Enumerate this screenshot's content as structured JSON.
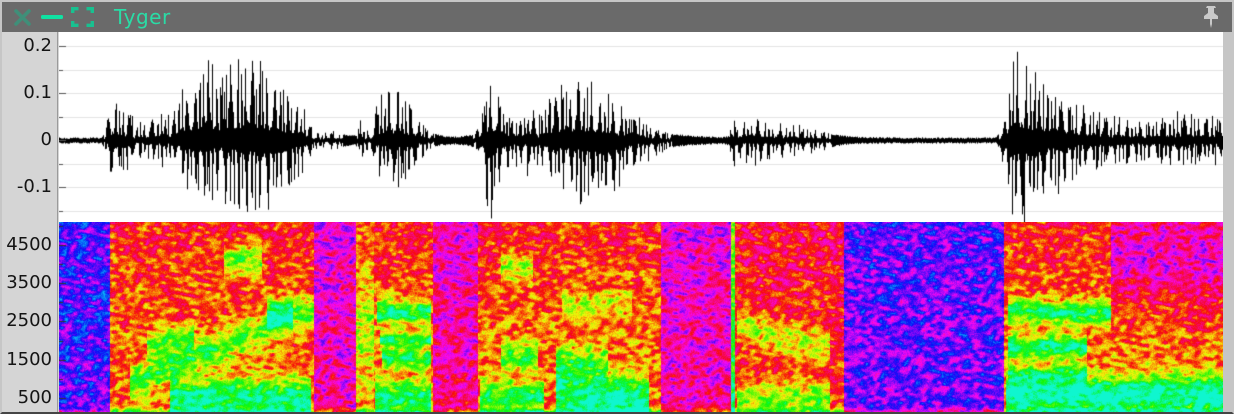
{
  "window": {
    "title": "Tyger"
  },
  "titlebar": {
    "buttons": [
      {
        "name": "close",
        "icon": "close-icon"
      },
      {
        "name": "minimize",
        "icon": "minimize-icon"
      },
      {
        "name": "maximize",
        "icon": "maximize-icon"
      }
    ],
    "pin": {
      "name": "pin",
      "icon": "pin-icon"
    }
  },
  "colors": {
    "titlebar_bg": "#6a6a6a",
    "accent_bright": "#10e2a2",
    "accent_mid": "#18c190",
    "accent_dim": "#3f8f79",
    "title_color": "#2adca6",
    "pin_color": "#c9c9c9",
    "gutter_bg": "#d5d5d5",
    "panel_bg": "#ffffff",
    "grid_color": "#e3e3e3",
    "wave_color": "#000000",
    "tick_color": "#555555",
    "border_light": "#c6c6c6",
    "border_dark": "#454545"
  },
  "chart_data": [
    {
      "type": "line",
      "name": "waveform",
      "title": "amplitude waveform of spoken audio",
      "ylim": [
        -0.1745,
        0.2298
      ],
      "major_ticks": [
        {
          "v": 0.2,
          "label": "0.2"
        },
        {
          "v": 0.1,
          "label": "0.1"
        },
        {
          "v": 0,
          "label": "0"
        },
        {
          "v": -0.1,
          "label": "-0.1"
        }
      ],
      "minor_ticks": [
        0.15,
        0.05,
        -0.05,
        -0.15
      ],
      "grid_values": [
        0.2,
        0.15,
        0.1,
        0.05,
        0,
        -0.05,
        -0.1,
        -0.15
      ],
      "envelope": [
        [
          0.0,
          0.004,
          0.004
        ],
        [
          0.036,
          0.004,
          0.004
        ],
        [
          0.04,
          0.02,
          0.02
        ],
        [
          0.043,
          0.09,
          0.07
        ],
        [
          0.047,
          0.06,
          0.06
        ],
        [
          0.053,
          0.07,
          0.065
        ],
        [
          0.06,
          0.05,
          0.05
        ],
        [
          0.066,
          0.03,
          0.03
        ],
        [
          0.074,
          0.035,
          0.03
        ],
        [
          0.083,
          0.04,
          0.035
        ],
        [
          0.089,
          0.065,
          0.05
        ],
        [
          0.094,
          0.04,
          0.04
        ],
        [
          0.1,
          0.06,
          0.05
        ],
        [
          0.104,
          0.11,
          0.09
        ],
        [
          0.113,
          0.13,
          0.1
        ],
        [
          0.122,
          0.145,
          0.11
        ],
        [
          0.13,
          0.15,
          0.12
        ],
        [
          0.139,
          0.125,
          0.11
        ],
        [
          0.147,
          0.13,
          0.12
        ],
        [
          0.156,
          0.16,
          0.12
        ],
        [
          0.16,
          0.185,
          0.13
        ],
        [
          0.164,
          0.15,
          0.13
        ],
        [
          0.169,
          0.13,
          0.135
        ],
        [
          0.175,
          0.14,
          0.14
        ],
        [
          0.182,
          0.12,
          0.12
        ],
        [
          0.19,
          0.1,
          0.1
        ],
        [
          0.199,
          0.09,
          0.085
        ],
        [
          0.205,
          0.075,
          0.07
        ],
        [
          0.211,
          0.05,
          0.05
        ],
        [
          0.217,
          0.02,
          0.02
        ],
        [
          0.224,
          0.012,
          0.012
        ],
        [
          0.237,
          0.015,
          0.015
        ],
        [
          0.246,
          0.01,
          0.01
        ],
        [
          0.254,
          0.008,
          0.008
        ],
        [
          0.259,
          0.045,
          0.04
        ],
        [
          0.262,
          0.015,
          0.015
        ],
        [
          0.267,
          0.02,
          0.02
        ],
        [
          0.271,
          0.06,
          0.05
        ],
        [
          0.276,
          0.09,
          0.07
        ],
        [
          0.28,
          0.105,
          0.08
        ],
        [
          0.286,
          0.1,
          0.085
        ],
        [
          0.293,
          0.095,
          0.08
        ],
        [
          0.3,
          0.07,
          0.06
        ],
        [
          0.306,
          0.055,
          0.05
        ],
        [
          0.312,
          0.035,
          0.035
        ],
        [
          0.318,
          0.015,
          0.015
        ],
        [
          0.327,
          0.008,
          0.008
        ],
        [
          0.34,
          0.006,
          0.006
        ],
        [
          0.353,
          0.01,
          0.01
        ],
        [
          0.36,
          0.03,
          0.03
        ],
        [
          0.364,
          0.095,
          0.1
        ],
        [
          0.368,
          0.115,
          0.165
        ],
        [
          0.372,
          0.1,
          0.12
        ],
        [
          0.378,
          0.08,
          0.09
        ],
        [
          0.385,
          0.05,
          0.06
        ],
        [
          0.391,
          0.04,
          0.05
        ],
        [
          0.396,
          0.055,
          0.05
        ],
        [
          0.401,
          0.07,
          0.06
        ],
        [
          0.406,
          0.05,
          0.05
        ],
        [
          0.413,
          0.045,
          0.05
        ],
        [
          0.419,
          0.08,
          0.08
        ],
        [
          0.425,
          0.1,
          0.09
        ],
        [
          0.431,
          0.11,
          0.1
        ],
        [
          0.438,
          0.115,
          0.105
        ],
        [
          0.445,
          0.11,
          0.11
        ],
        [
          0.451,
          0.105,
          0.11
        ],
        [
          0.457,
          0.1,
          0.115
        ],
        [
          0.464,
          0.095,
          0.15
        ],
        [
          0.471,
          0.085,
          0.12
        ],
        [
          0.477,
          0.075,
          0.1
        ],
        [
          0.483,
          0.065,
          0.08
        ],
        [
          0.49,
          0.055,
          0.06
        ],
        [
          0.497,
          0.045,
          0.05
        ],
        [
          0.502,
          0.035,
          0.04
        ],
        [
          0.508,
          0.025,
          0.03
        ],
        [
          0.515,
          0.018,
          0.02
        ],
        [
          0.524,
          0.012,
          0.012
        ],
        [
          0.532,
          0.01,
          0.01
        ],
        [
          0.541,
          0.008,
          0.008
        ],
        [
          0.55,
          0.007,
          0.007
        ],
        [
          0.558,
          0.006,
          0.006
        ],
        [
          0.567,
          0.005,
          0.005
        ],
        [
          0.574,
          0.008,
          0.008
        ],
        [
          0.576,
          0.047,
          0.081
        ],
        [
          0.58,
          0.02,
          0.03
        ],
        [
          0.584,
          0.035,
          0.04
        ],
        [
          0.591,
          0.04,
          0.045
        ],
        [
          0.598,
          0.035,
          0.04
        ],
        [
          0.605,
          0.03,
          0.035
        ],
        [
          0.614,
          0.03,
          0.03
        ],
        [
          0.622,
          0.028,
          0.028
        ],
        [
          0.631,
          0.026,
          0.026
        ],
        [
          0.64,
          0.024,
          0.024
        ],
        [
          0.648,
          0.02,
          0.02
        ],
        [
          0.657,
          0.015,
          0.015
        ],
        [
          0.665,
          0.01,
          0.01
        ],
        [
          0.674,
          0.007,
          0.007
        ],
        [
          0.687,
          0.005,
          0.005
        ],
        [
          0.721,
          0.004,
          0.004
        ],
        [
          0.764,
          0.004,
          0.004
        ],
        [
          0.802,
          0.004,
          0.004
        ],
        [
          0.806,
          0.02,
          0.02
        ],
        [
          0.81,
          0.06,
          0.09
        ],
        [
          0.813,
          0.12,
          0.13
        ],
        [
          0.818,
          0.15,
          0.16
        ],
        [
          0.822,
          0.16,
          0.17
        ],
        [
          0.827,
          0.145,
          0.16
        ],
        [
          0.832,
          0.13,
          0.15
        ],
        [
          0.839,
          0.115,
          0.13
        ],
        [
          0.846,
          0.1,
          0.11
        ],
        [
          0.853,
          0.09,
          0.095
        ],
        [
          0.86,
          0.08,
          0.085
        ],
        [
          0.868,
          0.07,
          0.075
        ],
        [
          0.877,
          0.06,
          0.065
        ],
        [
          0.885,
          0.055,
          0.055
        ],
        [
          0.894,
          0.05,
          0.05
        ],
        [
          0.902,
          0.045,
          0.045
        ],
        [
          0.911,
          0.04,
          0.04
        ],
        [
          0.92,
          0.038,
          0.038
        ],
        [
          0.931,
          0.035,
          0.035
        ],
        [
          0.942,
          0.04,
          0.04
        ],
        [
          0.952,
          0.048,
          0.045
        ],
        [
          0.962,
          0.05,
          0.048
        ],
        [
          0.973,
          0.048,
          0.045
        ],
        [
          0.984,
          0.045,
          0.042
        ],
        [
          0.995,
          0.04,
          0.04
        ],
        [
          1.0,
          0.035,
          0.035
        ]
      ]
    },
    {
      "type": "heatmap",
      "name": "spectrogram",
      "title": "spectrogram of spoken audio (Hz)",
      "major_ticks": [
        {
          "v": 4500,
          "label": "4500"
        },
        {
          "v": 3500,
          "label": "3500"
        },
        {
          "v": 2500,
          "label": "2500"
        },
        {
          "v": 1500,
          "label": "1500"
        },
        {
          "v": 500,
          "label": "500"
        }
      ],
      "minor_ticks": [
        5000,
        4000,
        3000,
        2000,
        1000
      ],
      "freq_top": 5100,
      "freq_bottom": 134,
      "colormap": {
        "hue_base": 232,
        "hue_span": 292,
        "saturation": 0.93,
        "lightness": 0.5
      },
      "segments": [
        {
          "x0": 0.0,
          "x1": 0.043,
          "base": 0.08,
          "formants": []
        },
        {
          "x0": 0.043,
          "x1": 0.218,
          "base": 0.55,
          "formants": [
            {
              "f0": 500,
              "f1": 500,
              "bw": 350,
              "g": 0.42,
              "x0": 0.095,
              "x1": 0.215
            },
            {
              "f0": 900,
              "f1": 2600,
              "bw": 280,
              "g": 0.32,
              "x0": 0.06,
              "x1": 0.2
            },
            {
              "f0": 4100,
              "f1": 4100,
              "bw": 280,
              "g": 0.3,
              "x0": 0.141,
              "x1": 0.173
            },
            {
              "f0": 2750,
              "f1": 2750,
              "bw": 250,
              "g": 0.35,
              "x0": 0.178,
              "x1": 0.218
            },
            {
              "f0": 1900,
              "f1": 2100,
              "bw": 220,
              "g": 0.28,
              "x0": 0.075,
              "x1": 0.115
            }
          ]
        },
        {
          "x0": 0.218,
          "x1": 0.254,
          "base": 0.3,
          "formants": []
        },
        {
          "x0": 0.254,
          "x1": 0.269,
          "base": 0.62,
          "formants": [
            {
              "f0": 2500,
              "f1": 2500,
              "bw": 900,
              "g": 0.12,
              "x0": 0.254,
              "x1": 0.269
            }
          ]
        },
        {
          "x0": 0.269,
          "x1": 0.32,
          "base": 0.55,
          "formants": [
            {
              "f0": 2750,
              "f1": 2750,
              "bw": 220,
              "g": 0.42,
              "x0": 0.272,
              "x1": 0.318
            },
            {
              "f0": 2050,
              "f1": 2050,
              "bw": 140,
              "g": 0.38,
              "x0": 0.274,
              "x1": 0.318
            },
            {
              "f0": 1550,
              "f1": 1550,
              "bw": 170,
              "g": 0.36,
              "x0": 0.276,
              "x1": 0.318
            },
            {
              "f0": 500,
              "f1": 500,
              "bw": 320,
              "g": 0.4,
              "x0": 0.27,
              "x1": 0.318
            }
          ]
        },
        {
          "x0": 0.32,
          "x1": 0.358,
          "base": 0.33,
          "formants": []
        },
        {
          "x0": 0.358,
          "x1": 0.42,
          "base": 0.55,
          "formants": [
            {
              "f0": 500,
              "f1": 500,
              "bw": 300,
              "g": 0.35,
              "x0": 0.36,
              "x1": 0.415
            },
            {
              "f0": 1600,
              "f1": 1600,
              "bw": 250,
              "g": 0.3,
              "x0": 0.378,
              "x1": 0.41
            },
            {
              "f0": 3900,
              "f1": 3900,
              "bw": 300,
              "g": 0.22,
              "x0": 0.378,
              "x1": 0.405
            }
          ]
        },
        {
          "x0": 0.42,
          "x1": 0.515,
          "base": 0.56,
          "formants": [
            {
              "f0": 700,
              "f1": 400,
              "bw": 450,
              "g": 0.45,
              "x0": 0.425,
              "x1": 0.505
            },
            {
              "f0": 1500,
              "f1": 1500,
              "bw": 250,
              "g": 0.25,
              "x0": 0.425,
              "x1": 0.47
            },
            {
              "f0": 3000,
              "f1": 3000,
              "bw": 250,
              "g": 0.15,
              "x0": 0.43,
              "x1": 0.49
            }
          ]
        },
        {
          "x0": 0.515,
          "x1": 0.575,
          "base": 0.3,
          "formants": []
        },
        {
          "x0": 0.575,
          "x1": 0.578,
          "base": 0.92,
          "formants": []
        },
        {
          "x0": 0.578,
          "x1": 0.672,
          "base": 0.48,
          "formants": [
            {
              "f0": 2400,
              "f1": 1800,
              "bw": 300,
              "g": 0.25,
              "x0": 0.58,
              "x1": 0.66
            },
            {
              "f0": 500,
              "f1": 500,
              "bw": 300,
              "g": 0.3,
              "x0": 0.58,
              "x1": 0.66
            }
          ]
        },
        {
          "x0": 0.672,
          "x1": 0.809,
          "base": 0.12,
          "formants": []
        },
        {
          "x0": 0.809,
          "x1": 1.001,
          "base": 0.56,
          "formants": [
            {
              "f0": 2800,
              "f1": 2700,
              "bw": 220,
              "g": 0.4,
              "x0": 0.812,
              "x1": 0.9
            },
            {
              "f0": 1850,
              "f1": 1850,
              "bw": 200,
              "g": 0.45,
              "x0": 0.812,
              "x1": 0.88
            },
            {
              "f0": 1150,
              "f1": 1150,
              "bw": 150,
              "g": 0.25,
              "x0": 0.812,
              "x1": 0.88
            },
            {
              "f0": 600,
              "f1": 600,
              "bw": 350,
              "g": 0.5,
              "x0": 0.81,
              "x1": 1.001
            },
            {
              "f0": 4200,
              "f1": 4200,
              "bw": 800,
              "g": -0.22,
              "x0": 0.9,
              "x1": 1.001
            }
          ]
        }
      ]
    }
  ]
}
